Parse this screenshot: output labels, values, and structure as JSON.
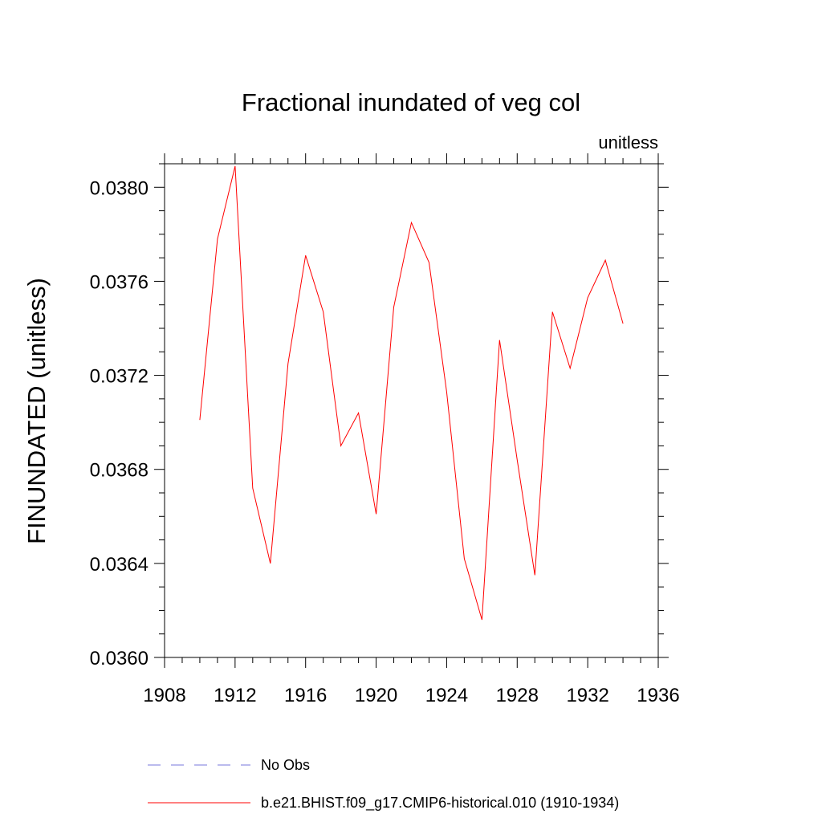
{
  "chart_data": {
    "type": "line",
    "title": "Fractional inundated of veg col",
    "units": "unitless",
    "ylabel": "FINUNDATED  (unitless)",
    "xlabel": "",
    "xlim": [
      1908,
      1936
    ],
    "ylim": [
      0.036,
      0.0381
    ],
    "x_ticks": [
      1908,
      1912,
      1916,
      1920,
      1924,
      1928,
      1932,
      1936
    ],
    "x_tick_labels": [
      "1908",
      "1912",
      "1916",
      "1920",
      "1924",
      "1928",
      "1932",
      "1936"
    ],
    "y_ticks": [
      0.036,
      0.0364,
      0.0368,
      0.0372,
      0.0376,
      0.038
    ],
    "y_tick_labels": [
      "0.0360",
      "0.0364",
      "0.0368",
      "0.0372",
      "0.0376",
      "0.0380"
    ],
    "x_minor_step": 1,
    "y_minor_step": 0.0001,
    "grid": false,
    "series": [
      {
        "name": "b.e21.BHIST.f09_g17.CMIP6-historical.010 (1910-1934)",
        "color": "#ff0000",
        "style": "solid",
        "x": [
          1910,
          1911,
          1912,
          1913,
          1914,
          1915,
          1916,
          1917,
          1918,
          1919,
          1920,
          1921,
          1922,
          1923,
          1924,
          1925,
          1926,
          1927,
          1928,
          1929,
          1930,
          1931,
          1932,
          1933,
          1934
        ],
        "values": [
          0.03701,
          0.03778,
          0.03809,
          0.03672,
          0.0364,
          0.03725,
          0.03771,
          0.03747,
          0.0369,
          0.03704,
          0.03661,
          0.03749,
          0.03785,
          0.03768,
          0.03713,
          0.03642,
          0.03616,
          0.03735,
          0.03684,
          0.03635,
          0.03747,
          0.03723,
          0.03753,
          0.03769,
          0.03742
        ]
      }
    ],
    "legend": [
      {
        "label": "No Obs",
        "color": "#7777dd",
        "style": "dashed"
      },
      {
        "label": "b.e21.BHIST.f09_g17.CMIP6-historical.010 (1910-1934)",
        "color": "#ff0000",
        "style": "solid"
      }
    ]
  }
}
